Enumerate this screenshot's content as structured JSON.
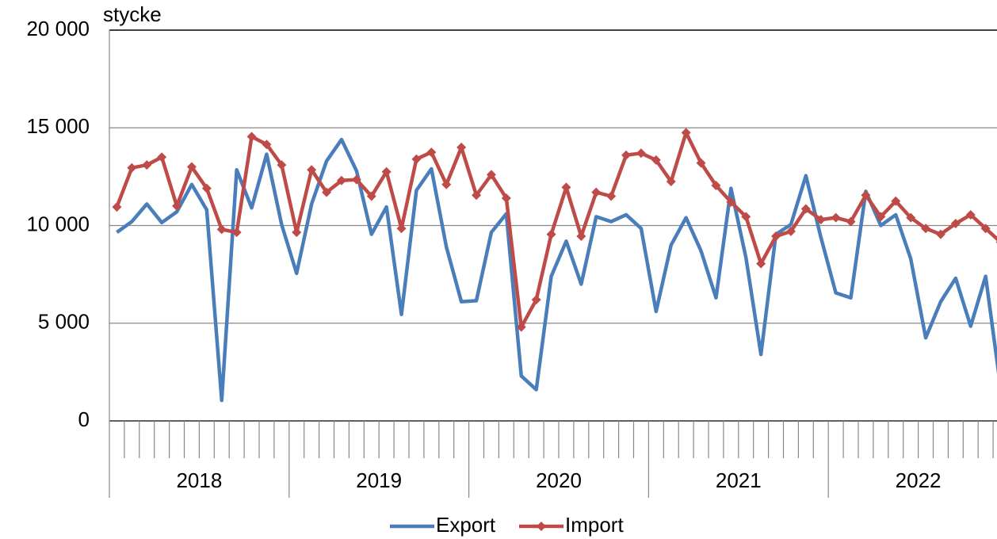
{
  "chart_data": {
    "type": "line",
    "y_unit_label": "stycke",
    "categories": [
      null,
      null,
      null,
      null,
      null,
      null,
      null,
      null,
      null,
      null,
      null,
      null,
      null,
      null,
      null,
      null,
      null,
      null,
      null,
      null,
      null,
      null,
      null,
      null,
      null,
      null,
      null,
      null,
      null,
      null,
      null,
      null,
      null,
      null,
      null,
      null,
      null,
      null,
      null,
      null,
      null,
      null,
      null,
      null,
      null,
      null,
      null,
      null,
      null,
      null,
      null,
      null,
      null,
      null,
      null,
      null,
      null,
      null,
      null,
      null
    ],
    "year_labels": [
      "2018",
      "2019",
      "2020",
      "2021",
      "2022"
    ],
    "series": [
      {
        "name": "Export",
        "color": "#4a7ebb",
        "marker": "none",
        "values": [
          9650,
          10200,
          11100,
          10150,
          10700,
          12100,
          10800,
          1050,
          12850,
          10900,
          13650,
          10050,
          7550,
          11100,
          13300,
          14400,
          12800,
          9550,
          10950,
          5450,
          11800,
          12900,
          8900,
          6100,
          6150,
          9650,
          10600,
          2300,
          1600,
          7400,
          9200,
          7000,
          10450,
          10200,
          10550,
          9850,
          5600,
          9000,
          10400,
          8700,
          6300,
          11900,
          8350,
          3400,
          9550,
          10050,
          12550,
          9400,
          6550,
          6300,
          11750,
          10000,
          10550,
          8300,
          4250,
          6100,
          7300,
          4850,
          7400,
          1700
        ]
      },
      {
        "name": "Import",
        "color": "#be4b48",
        "marker": "diamond",
        "values": [
          10950,
          12950,
          13100,
          13500,
          11000,
          13000,
          11900,
          9800,
          9650,
          14550,
          14150,
          13100,
          9650,
          12850,
          11700,
          12300,
          12350,
          11500,
          12750,
          9850,
          13400,
          13750,
          12100,
          14000,
          11550,
          12600,
          11400,
          4800,
          6200,
          9550,
          11950,
          9450,
          11700,
          11500,
          13600,
          13700,
          13350,
          12250,
          14750,
          13200,
          12050,
          11200,
          10450,
          8050,
          9450,
          9700,
          10850,
          10300,
          10400,
          10200,
          11550,
          10450,
          11250,
          10400,
          9850,
          9550,
          10100,
          10550,
          9850,
          9150
        ]
      }
    ],
    "ylim": [
      0,
      20000
    ],
    "yticks": [
      0,
      {
        "value": 5000,
        "label": "5 000"
      },
      {
        "value": 10000,
        "label": "10 000"
      },
      {
        "value": 15000,
        "label": "15 000"
      },
      {
        "value": 20000,
        "label": "20 000"
      }
    ],
    "grid": true,
    "legend": "bottom"
  }
}
